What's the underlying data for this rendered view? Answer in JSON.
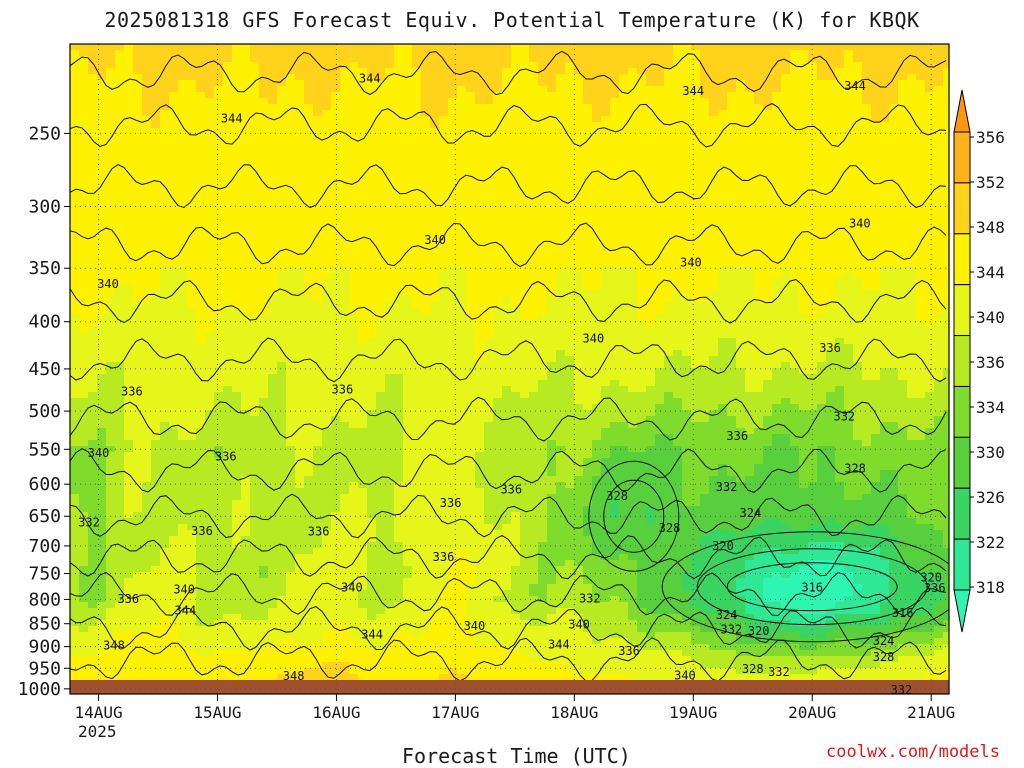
{
  "title": "2025081318 GFS Forecast Equiv. Potential Temperature (K) for KBQK",
  "footer": {
    "x_axis_title": "Forecast Time (UTC)",
    "credit": "coolwx.com/models",
    "year_label": "2025"
  },
  "colors": {
    "ground": "#a0522d",
    "grid": "#555555",
    "contour": "#111111",
    "credit_text": "#d81b1b"
  },
  "chart_data": {
    "type": "heatmap",
    "title": "2025081318 GFS Forecast Equiv. Potential Temperature (K) for KBQK",
    "xlabel": "Forecast Time (UTC)",
    "ylabel": "",
    "x_ticks": [
      "14AUG",
      "15AUG",
      "16AUG",
      "17AUG",
      "18AUG",
      "19AUG",
      "20AUG",
      "21AUG"
    ],
    "x_range_days": [
      -0.24,
      7.15
    ],
    "y_ticks": [
      250,
      300,
      350,
      400,
      450,
      500,
      550,
      600,
      650,
      700,
      750,
      800,
      850,
      900,
      950,
      1000
    ],
    "y_range_hpa": [
      200,
      1013
    ],
    "y_scale": "log-pressure (inverted)",
    "grid": "dotted",
    "colorbar": {
      "values": [
        318,
        322,
        326,
        330,
        334,
        336,
        340,
        344,
        348,
        352,
        356
      ],
      "boundaries": [
        316,
        320,
        324,
        328,
        332,
        335,
        338,
        342,
        346,
        350,
        354,
        358
      ],
      "colors": [
        "#2ef5b2",
        "#2ee896",
        "#3ad462",
        "#58cf3c",
        "#7fdc2c",
        "#b8ea24",
        "#e6f51a",
        "#fff200",
        "#ffd21c",
        "#ffb21a",
        "#ff9612"
      ],
      "extends": "both"
    },
    "contour_labels": [
      {
        "text": "344",
        "day": 2.28,
        "p": 218
      },
      {
        "text": "344",
        "day": 1.12,
        "p": 241
      },
      {
        "text": "344",
        "day": 5.0,
        "p": 225
      },
      {
        "text": "344",
        "day": 6.36,
        "p": 222
      },
      {
        "text": "340",
        "day": 0.08,
        "p": 364
      },
      {
        "text": "340",
        "day": 2.83,
        "p": 326
      },
      {
        "text": "340",
        "day": 4.98,
        "p": 345
      },
      {
        "text": "340",
        "day": 6.4,
        "p": 313
      },
      {
        "text": "340",
        "day": 4.16,
        "p": 417
      },
      {
        "text": "340",
        "day": 0.0,
        "p": 555
      },
      {
        "text": "340",
        "day": 0.72,
        "p": 780
      },
      {
        "text": "340",
        "day": 2.13,
        "p": 777
      },
      {
        "text": "340",
        "day": 3.16,
        "p": 855
      },
      {
        "text": "340",
        "day": 4.04,
        "p": 852
      },
      {
        "text": "340",
        "day": 4.93,
        "p": 967
      },
      {
        "text": "336",
        "day": 0.28,
        "p": 476
      },
      {
        "text": "336",
        "day": 2.05,
        "p": 474
      },
      {
        "text": "336",
        "day": 1.07,
        "p": 560
      },
      {
        "text": "336",
        "day": 0.87,
        "p": 674
      },
      {
        "text": "336",
        "day": 1.85,
        "p": 675
      },
      {
        "text": "336",
        "day": 2.96,
        "p": 629
      },
      {
        "text": "336",
        "day": 3.47,
        "p": 608
      },
      {
        "text": "336",
        "day": 2.9,
        "p": 720
      },
      {
        "text": "336",
        "day": 0.25,
        "p": 799
      },
      {
        "text": "336",
        "day": 6.15,
        "p": 427
      },
      {
        "text": "336",
        "day": 5.37,
        "p": 532
      },
      {
        "text": "336",
        "day": 4.46,
        "p": 910
      },
      {
        "text": "336",
        "day": 7.03,
        "p": 778
      },
      {
        "text": "332",
        "day": -0.08,
        "p": 660
      },
      {
        "text": "332",
        "day": 4.13,
        "p": 798
      },
      {
        "text": "332",
        "day": 5.28,
        "p": 604
      },
      {
        "text": "332",
        "day": 6.27,
        "p": 507
      },
      {
        "text": "332",
        "day": 5.32,
        "p": 862
      },
      {
        "text": "332",
        "day": 5.72,
        "p": 959
      },
      {
        "text": "332",
        "day": 6.75,
        "p": 1003
      },
      {
        "text": "328",
        "day": 4.36,
        "p": 618
      },
      {
        "text": "328",
        "day": 4.8,
        "p": 669
      },
      {
        "text": "328",
        "day": 6.36,
        "p": 577
      },
      {
        "text": "328",
        "day": 5.5,
        "p": 952
      },
      {
        "text": "328",
        "day": 6.6,
        "p": 924
      },
      {
        "text": "324",
        "day": 5.48,
        "p": 645
      },
      {
        "text": "324",
        "day": 5.28,
        "p": 832
      },
      {
        "text": "324",
        "day": 6.6,
        "p": 888
      },
      {
        "text": "320",
        "day": 5.25,
        "p": 700
      },
      {
        "text": "320",
        "day": 5.55,
        "p": 866
      },
      {
        "text": "320",
        "day": 7.0,
        "p": 757
      },
      {
        "text": "316",
        "day": 6.0,
        "p": 777
      },
      {
        "text": "316",
        "day": 6.76,
        "p": 828
      },
      {
        "text": "348",
        "day": 0.13,
        "p": 897
      },
      {
        "text": "348",
        "day": 1.64,
        "p": 968
      },
      {
        "text": "344",
        "day": 0.73,
        "p": 822
      },
      {
        "text": "344",
        "day": 2.3,
        "p": 873
      },
      {
        "text": "344",
        "day": 3.87,
        "p": 895
      }
    ]
  }
}
